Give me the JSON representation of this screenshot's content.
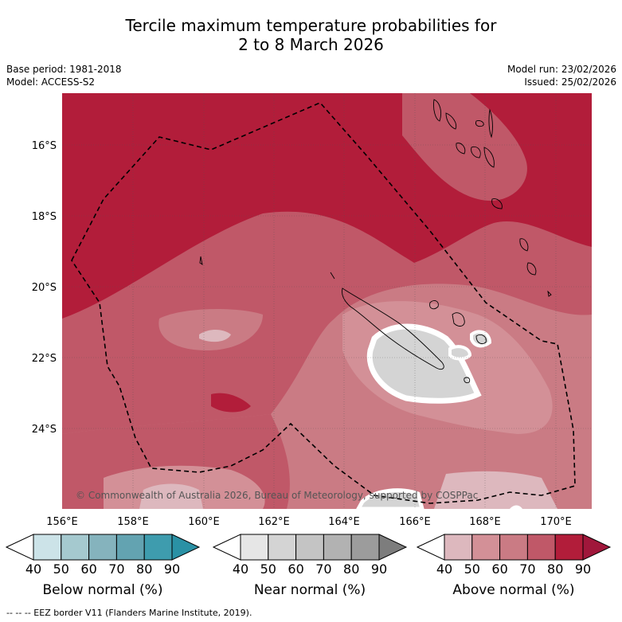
{
  "header": {
    "title_line1": "Tercile maximum temperature probabilities for",
    "title_line2": "2 to 8 March 2026",
    "base_period": "Base period: 1981-2018",
    "model": "Model: ACCESS-S2",
    "model_run": "Model run: 23/02/2026",
    "issued": "Issued: 25/02/2026"
  },
  "map": {
    "region": "New Caledonia",
    "lon_ticks": [
      "156°E",
      "158°E",
      "160°E",
      "162°E",
      "164°E",
      "166°E",
      "168°E",
      "170°E"
    ],
    "lat_ticks": [
      "16°S",
      "18°S",
      "20°S",
      "22°S",
      "24°S"
    ],
    "copyright": "© Commonwealth of Australia 2026, Bureau of Meteorology, supported by COSPPac",
    "eez_line_style": "dashed"
  },
  "legend": {
    "bins": [
      "40",
      "50",
      "60",
      "70",
      "80",
      "90"
    ],
    "below": {
      "label": "Below normal (%)",
      "colors": [
        "#ffffff",
        "#cce3e8",
        "#a5c9cf",
        "#85b3bd",
        "#63a3b1",
        "#3e9cae",
        "#2a91a5"
      ]
    },
    "near": {
      "label": "Near normal (%)",
      "colors": [
        "#ffffff",
        "#e6e6e6",
        "#d4d4d4",
        "#c4c4c4",
        "#b2b2b2",
        "#9c9c9c",
        "#7d7d7d"
      ]
    },
    "above": {
      "label": "Above normal (%)",
      "colors": [
        "#ffffff",
        "#ddb8be",
        "#d39097",
        "#ca7b84",
        "#c05868",
        "#b21d3a",
        "#a0173b"
      ]
    }
  },
  "footer": "--  --  -- EEZ border V11 (Flanders Marine Institute, 2019)."
}
